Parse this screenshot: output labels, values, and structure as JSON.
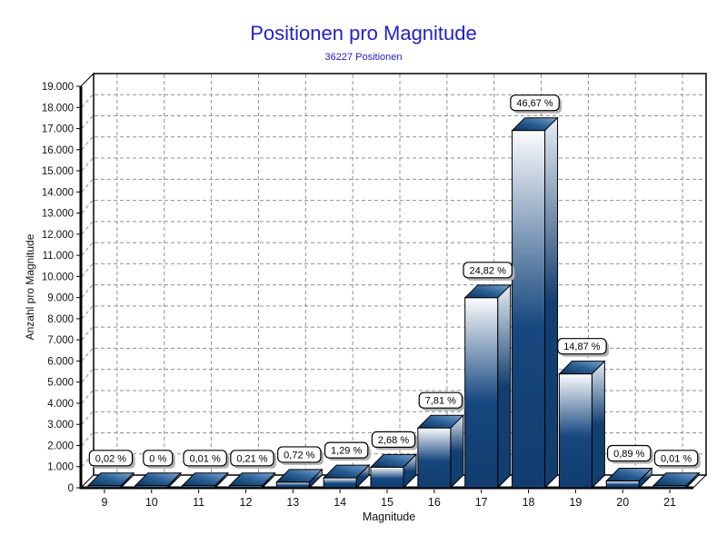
{
  "chart_data": {
    "type": "bar",
    "title": "Positionen pro Magnitude",
    "subtitle": "36227 Positionen",
    "total_positionen": 36227,
    "xlabel": "Magnitude",
    "ylabel": "Anzahl pro Magnitude",
    "categories": [
      "9",
      "10",
      "11",
      "12",
      "13",
      "14",
      "15",
      "16",
      "17",
      "18",
      "19",
      "20",
      "21"
    ],
    "bar_labels": [
      "0,02 %",
      "0 %",
      "0,01 %",
      "0,21 %",
      "0,72 %",
      "1,29 %",
      "2,68 %",
      "7,81 %",
      "24,82 %",
      "46,67 %",
      "14,87 %",
      "0,89 %",
      "0,01 %"
    ],
    "percent_values": [
      0.02,
      0,
      0.01,
      0.21,
      0.72,
      1.29,
      2.68,
      7.81,
      24.82,
      46.67,
      14.87,
      0.89,
      0.01
    ],
    "estimated_counts": [
      7,
      1,
      4,
      76,
      261,
      467,
      971,
      2829,
      8992,
      16907,
      5387,
      322,
      4
    ],
    "ylim": [
      0,
      19000
    ],
    "ytick_step": 1000,
    "ytick_labels": [
      "0",
      "1.000",
      "2.000",
      "3.000",
      "4.000",
      "5.000",
      "6.000",
      "7.000",
      "8.000",
      "9.000",
      "10.000",
      "11.000",
      "12.000",
      "13.000",
      "14.000",
      "15.000",
      "16.000",
      "17.000",
      "18.000",
      "19.000"
    ],
    "grid": {
      "style": "dashed",
      "color": "#8F8F8F",
      "vertical": true,
      "horizontal": true
    },
    "legend": "none",
    "projection": "3d",
    "colors": {
      "title": "#2121C8",
      "bar_dark": "#16477E",
      "bar_darker": "#123C6E",
      "bar_light": "#FBFCFE",
      "side_light": "#E7EDF5",
      "side_dark": "#123E70",
      "top_dark": "#0A3158",
      "top_mid": "#2A5F96",
      "top_light": "#7BA3CD",
      "outline": "#000000",
      "axis": "#000000",
      "label_box_bg": "#FFFFFF",
      "label_box_border": "#000000",
      "label_box_shadow": "#B0B0B0",
      "tick_text": "#111111"
    }
  }
}
